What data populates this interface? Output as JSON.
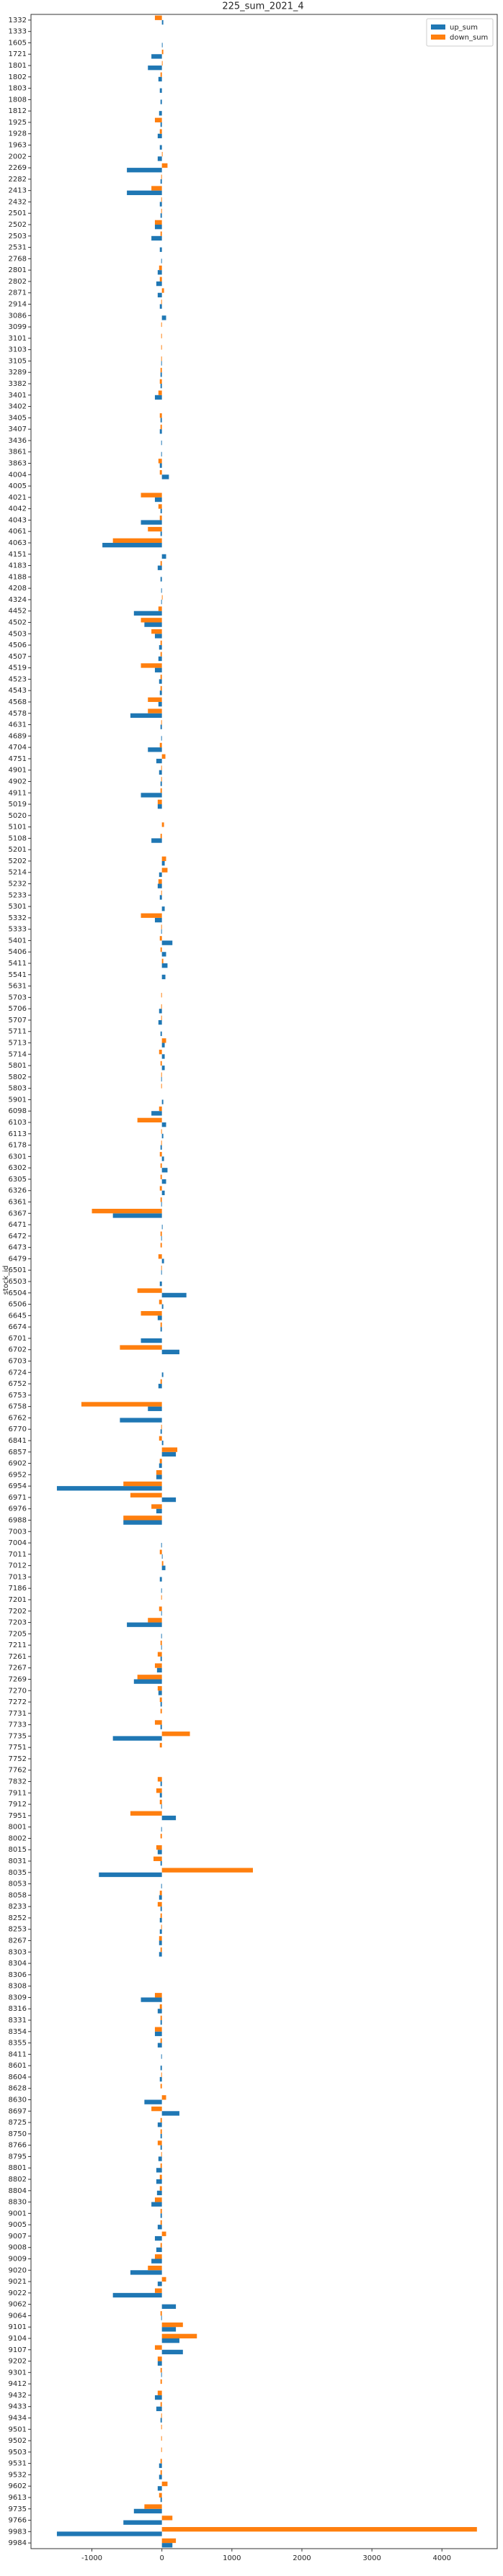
{
  "chart_data": {
    "type": "barh",
    "title": "225_sum_2021_4",
    "ylabel": "stock_id",
    "categories": [
      "1332",
      "1333",
      "1605",
      "1721",
      "1801",
      "1802",
      "1803",
      "1808",
      "1812",
      "1925",
      "1928",
      "1963",
      "2002",
      "2269",
      "2282",
      "2413",
      "2432",
      "2501",
      "2502",
      "2503",
      "2531",
      "2768",
      "2801",
      "2802",
      "2871",
      "2914",
      "3086",
      "3099",
      "3101",
      "3103",
      "3105",
      "3289",
      "3382",
      "3401",
      "3402",
      "3405",
      "3407",
      "3436",
      "3861",
      "3863",
      "4004",
      "4005",
      "4021",
      "4042",
      "4043",
      "4061",
      "4063",
      "4151",
      "4183",
      "4188",
      "4208",
      "4324",
      "4452",
      "4502",
      "4503",
      "4506",
      "4507",
      "4519",
      "4523",
      "4543",
      "4568",
      "4578",
      "4631",
      "4689",
      "4704",
      "4751",
      "4901",
      "4902",
      "4911",
      "5019",
      "5020",
      "5101",
      "5108",
      "5201",
      "5202",
      "5214",
      "5232",
      "5233",
      "5301",
      "5332",
      "5333",
      "5401",
      "5406",
      "5411",
      "5541",
      "5631",
      "5703",
      "5706",
      "5707",
      "5711",
      "5713",
      "5714",
      "5801",
      "5802",
      "5803",
      "5901",
      "6098",
      "6103",
      "6113",
      "6178",
      "6301",
      "6302",
      "6305",
      "6326",
      "6361",
      "6367",
      "6471",
      "6472",
      "6473",
      "6479",
      "6501",
      "6503",
      "6504",
      "6506",
      "6645",
      "6674",
      "6701",
      "6702",
      "6703",
      "6724",
      "6752",
      "6753",
      "6758",
      "6762",
      "6770",
      "6841",
      "6857",
      "6902",
      "6952",
      "6954",
      "6971",
      "6976",
      "6988",
      "7003",
      "7004",
      "7011",
      "7012",
      "7013",
      "7186",
      "7201",
      "7202",
      "7203",
      "7205",
      "7211",
      "7261",
      "7267",
      "7269",
      "7270",
      "7272",
      "7731",
      "7733",
      "7735",
      "7751",
      "7752",
      "7762",
      "7832",
      "7911",
      "7912",
      "7951",
      "8001",
      "8002",
      "8015",
      "8031",
      "8035",
      "8053",
      "8058",
      "8233",
      "8252",
      "8253",
      "8267",
      "8303",
      "8304",
      "8306",
      "8308",
      "8309",
      "8316",
      "8331",
      "8354",
      "8355",
      "8411",
      "8601",
      "8604",
      "8628",
      "8630",
      "8697",
      "8725",
      "8750",
      "8766",
      "8795",
      "8801",
      "8802",
      "8804",
      "8830",
      "9001",
      "9005",
      "9007",
      "9008",
      "9009",
      "9020",
      "9021",
      "9022",
      "9062",
      "9064",
      "9101",
      "9104",
      "9107",
      "9202",
      "9301",
      "9412",
      "9432",
      "9433",
      "9434",
      "9501",
      "9502",
      "9503",
      "9531",
      "9532",
      "9602",
      "9613",
      "9735",
      "9766",
      "9983",
      "9984"
    ],
    "series": [
      {
        "name": "up_sum",
        "color": "#1f77b4",
        "values": [
          20,
          0,
          10,
          -150,
          -200,
          -50,
          -30,
          -20,
          -40,
          -20,
          -60,
          -30,
          -60,
          -500,
          -20,
          -500,
          -30,
          -20,
          -100,
          -150,
          -30,
          -10,
          -60,
          -80,
          -60,
          -30,
          60,
          0,
          0,
          0,
          -10,
          -20,
          -20,
          -100,
          0,
          -20,
          -30,
          -10,
          -10,
          -30,
          100,
          0,
          -100,
          -20,
          -300,
          -20,
          -850,
          60,
          -60,
          -20,
          -10,
          -10,
          -400,
          -250,
          -100,
          -40,
          -50,
          -100,
          -40,
          -30,
          -50,
          -450,
          -20,
          -10,
          -200,
          -80,
          -40,
          -20,
          -300,
          -60,
          0,
          0,
          -150,
          0,
          40,
          -40,
          -60,
          -30,
          40,
          -100,
          -10,
          150,
          60,
          80,
          50,
          0,
          0,
          -40,
          -50,
          -20,
          40,
          40,
          40,
          -10,
          0,
          20,
          -150,
          60,
          20,
          -20,
          30,
          80,
          60,
          40,
          -10,
          -700,
          10,
          -10,
          0,
          30,
          -10,
          -30,
          350,
          20,
          -60,
          -20,
          -300,
          250,
          0,
          20,
          -50,
          0,
          -200,
          -600,
          -20,
          20,
          200,
          -40,
          -80,
          -1500,
          200,
          -80,
          -550,
          0,
          -10,
          10,
          50,
          -30,
          -10,
          0,
          -10,
          -500,
          -10,
          -10,
          -20,
          -70,
          -400,
          -50,
          -20,
          0,
          -20,
          -700,
          0,
          0,
          0,
          -20,
          -30,
          -10,
          200,
          -10,
          0,
          -60,
          -20,
          -900,
          -10,
          -40,
          -20,
          -30,
          -30,
          -40,
          -40,
          0,
          0,
          0,
          -300,
          -60,
          -20,
          -100,
          -60,
          -10,
          -20,
          -30,
          0,
          -250,
          250,
          -60,
          -20,
          -20,
          -50,
          -80,
          -80,
          -70,
          -150,
          -20,
          -60,
          -100,
          -80,
          -150,
          -450,
          -60,
          -700,
          200,
          -10,
          200,
          250,
          300,
          -60,
          -10,
          0,
          -100,
          -80,
          -20,
          0,
          0,
          0,
          -40,
          -40,
          -60,
          -20,
          -400,
          -550,
          -1500,
          150
        ]
      },
      {
        "name": "down_sum",
        "color": "#ff7f0e",
        "values": [
          -100,
          0,
          0,
          20,
          10,
          -20,
          0,
          0,
          0,
          -100,
          -30,
          0,
          10,
          80,
          -10,
          -150,
          -10,
          -10,
          -100,
          -20,
          0,
          0,
          -40,
          -30,
          30,
          -10,
          0,
          -10,
          -10,
          -10,
          -10,
          -20,
          -30,
          -50,
          0,
          -30,
          -20,
          0,
          0,
          -50,
          -30,
          0,
          -300,
          -50,
          -30,
          -200,
          -700,
          0,
          -20,
          0,
          0,
          10,
          -50,
          -300,
          -150,
          -20,
          -20,
          -300,
          -20,
          -20,
          -200,
          -200,
          -10,
          0,
          -30,
          50,
          -10,
          -10,
          -20,
          -60,
          0,
          30,
          -20,
          0,
          60,
          80,
          -50,
          -10,
          0,
          -300,
          -10,
          -30,
          -20,
          20,
          0,
          0,
          -10,
          -10,
          -10,
          0,
          60,
          -40,
          -20,
          -10,
          -10,
          0,
          -40,
          -350,
          -10,
          -10,
          -30,
          -20,
          -20,
          -30,
          -20,
          -1000,
          0,
          -20,
          -20,
          -50,
          -10,
          0,
          -350,
          -40,
          -300,
          -20,
          0,
          -600,
          0,
          0,
          -20,
          0,
          -1150,
          0,
          -10,
          -40,
          220,
          -30,
          -80,
          -550,
          -450,
          -150,
          -550,
          0,
          0,
          -30,
          20,
          0,
          0,
          -10,
          -40,
          -200,
          0,
          -20,
          -60,
          -100,
          -350,
          -60,
          -30,
          -20,
          -100,
          400,
          -30,
          0,
          0,
          -60,
          -80,
          -30,
          -450,
          0,
          -20,
          -80,
          -120,
          1300,
          0,
          -30,
          -60,
          -20,
          -10,
          -40,
          -20,
          0,
          0,
          0,
          -100,
          -30,
          -20,
          -100,
          -20,
          0,
          0,
          -10,
          -20,
          60,
          -150,
          -20,
          -20,
          -60,
          -10,
          -20,
          -30,
          -30,
          -100,
          -20,
          -20,
          60,
          -20,
          -100,
          -200,
          60,
          -100,
          0,
          -20,
          300,
          500,
          -100,
          -60,
          -20,
          -20,
          -60,
          -20,
          -10,
          -10,
          -10,
          -10,
          -20,
          -20,
          80,
          -40,
          -250,
          150,
          4500,
          200
        ]
      }
    ],
    "xlim": [
      -1870,
      4790
    ],
    "xticks": [
      -1000,
      0,
      1000,
      2000,
      3000,
      4000
    ],
    "legend": "upper right"
  }
}
